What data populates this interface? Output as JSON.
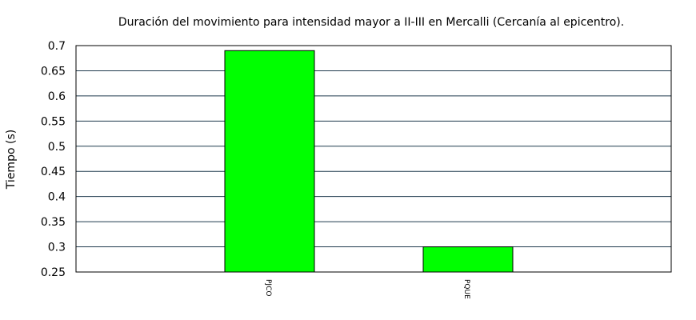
{
  "chart_data": {
    "type": "bar",
    "title": "Duración del movimiento para intensidad mayor a II-III en Mercalli (Cercanía al epicentro).",
    "xlabel": "",
    "ylabel": "Tiempo (s)",
    "categories": [
      "PJCO",
      "PQUE"
    ],
    "values": [
      0.69,
      0.3
    ],
    "ylim": [
      0.25,
      0.7
    ],
    "yticks": [
      "0.25",
      "0.3",
      "0.35",
      "0.4",
      "0.45",
      "0.5",
      "0.55",
      "0.6",
      "0.65",
      "0.7"
    ],
    "grid": true,
    "bar_color": "#00ff00",
    "grid_color": "#1f3a4d"
  }
}
